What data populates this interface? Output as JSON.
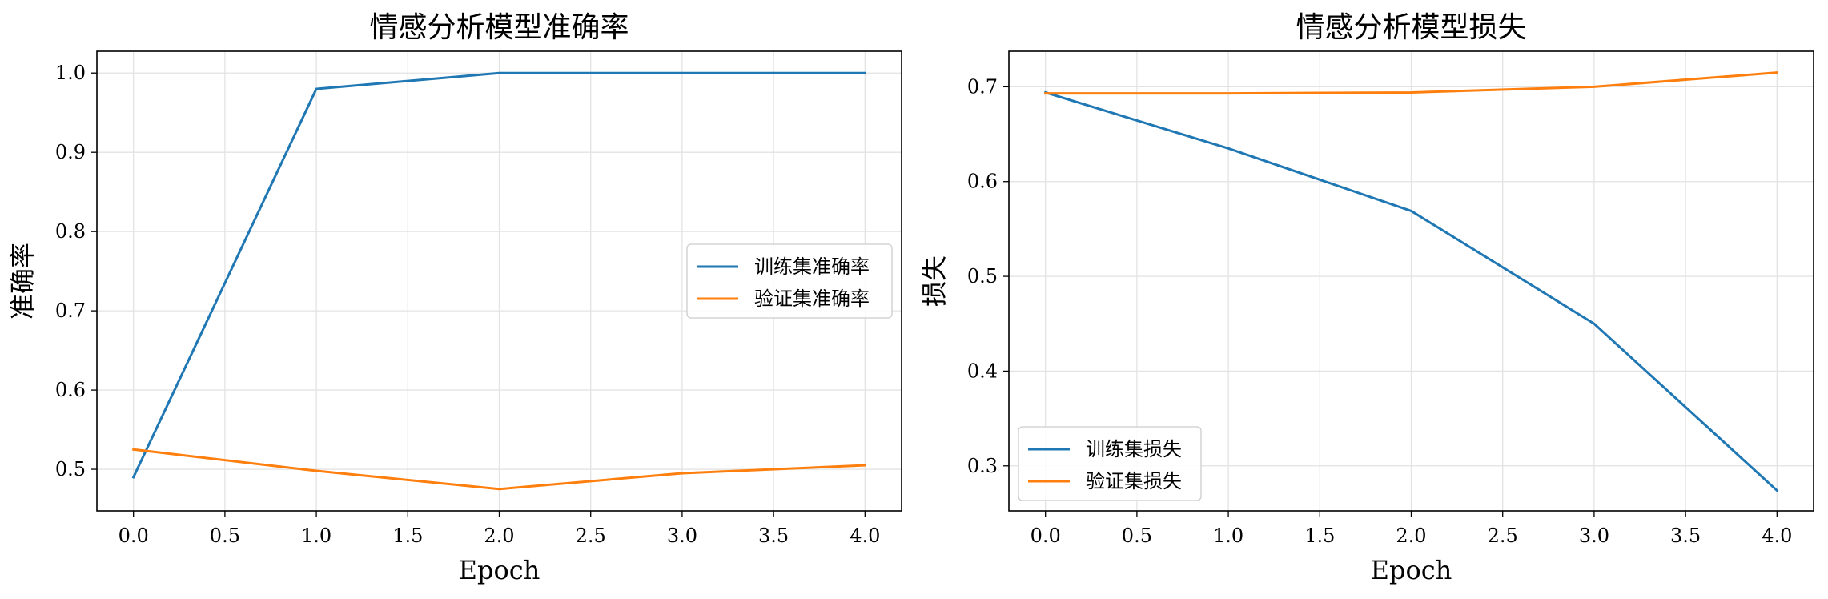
{
  "chart_data": [
    {
      "type": "line",
      "title": "情感分析模型准确率",
      "xlabel": "Epoch",
      "ylabel": "准确率",
      "x": [
        0,
        1,
        2,
        3,
        4
      ],
      "xlim": [
        -0.2,
        4.2
      ],
      "ylim": [
        0.4475,
        1.0275
      ],
      "xticks": [
        "0.0",
        "0.5",
        "1.0",
        "1.5",
        "2.0",
        "2.5",
        "3.0",
        "3.5",
        "4.0"
      ],
      "yticks": [
        "0.5",
        "0.6",
        "0.7",
        "0.8",
        "0.9",
        "1.0"
      ],
      "grid": true,
      "legend": "center-right",
      "series": [
        {
          "name": "训练集准确率",
          "color": "#1f77b4",
          "values": [
            0.49,
            0.98,
            1.0,
            1.0,
            1.0
          ]
        },
        {
          "name": "验证集准确率",
          "color": "#ff7f0e",
          "values": [
            0.525,
            0.498,
            0.475,
            0.495,
            0.505
          ]
        }
      ]
    },
    {
      "type": "line",
      "title": "情感分析模型损失",
      "xlabel": "Epoch",
      "ylabel": "损失",
      "x": [
        0,
        1,
        2,
        3,
        4
      ],
      "xlim": [
        -0.2,
        4.2
      ],
      "ylim": [
        0.2525,
        0.7375
      ],
      "xticks": [
        "0.0",
        "0.5",
        "1.0",
        "1.5",
        "2.0",
        "2.5",
        "3.0",
        "3.5",
        "4.0"
      ],
      "yticks": [
        "0.3",
        "0.4",
        "0.5",
        "0.6",
        "0.7"
      ],
      "grid": true,
      "legend": "lower-left",
      "series": [
        {
          "name": "训练集损失",
          "color": "#1f77b4",
          "values": [
            0.694,
            0.635,
            0.569,
            0.45,
            0.274
          ]
        },
        {
          "name": "验证集损失",
          "color": "#ff7f0e",
          "values": [
            0.693,
            0.693,
            0.694,
            0.7,
            0.715
          ]
        }
      ]
    }
  ]
}
